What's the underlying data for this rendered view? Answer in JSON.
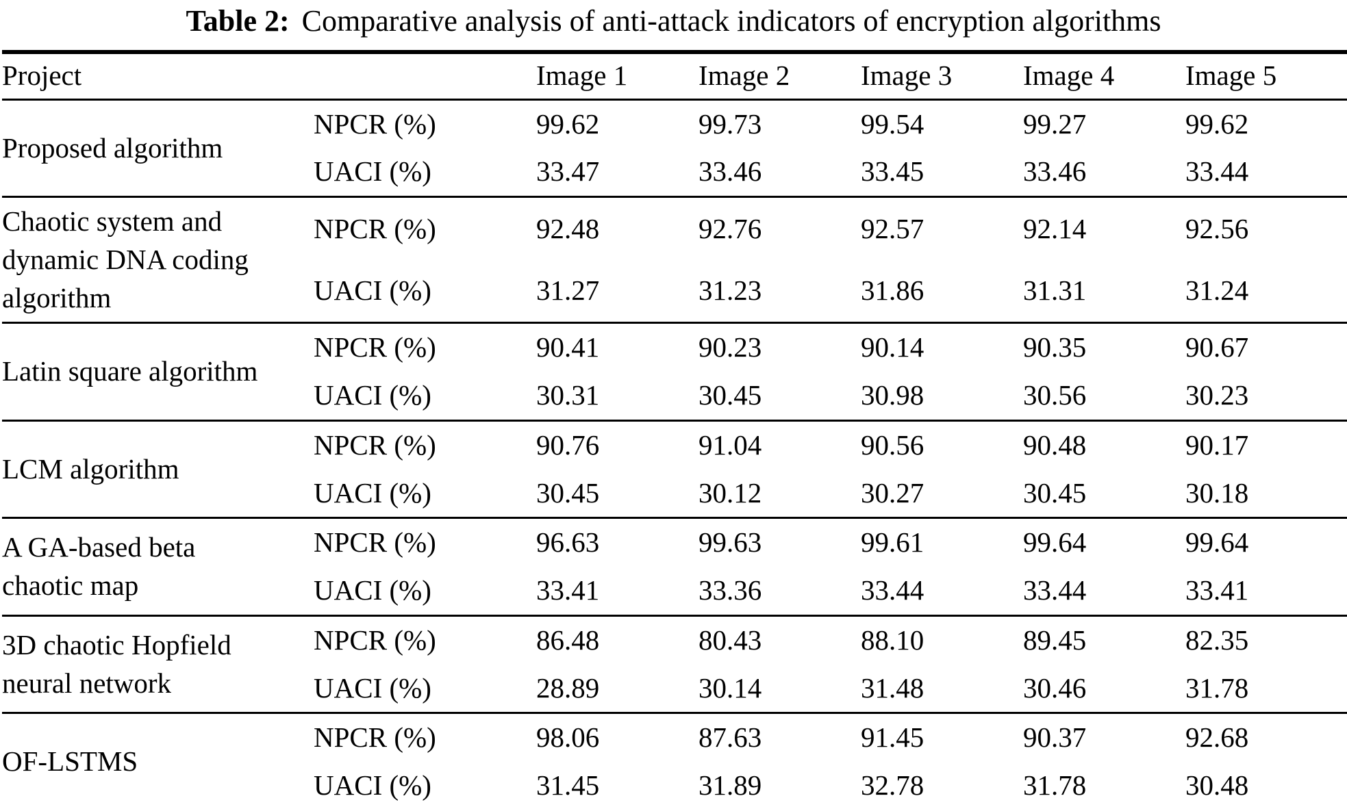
{
  "caption": {
    "label": "Table 2:",
    "text": "Comparative analysis of anti-attack indicators of encryption algorithms"
  },
  "table": {
    "headers": {
      "project": "Project",
      "metric": "",
      "images": [
        "Image 1",
        "Image 2",
        "Image 3",
        "Image 4",
        "Image 5"
      ]
    },
    "groups": [
      {
        "project": "Proposed algorithm",
        "rows": [
          {
            "metric": "NPCR (%)",
            "values": [
              "99.62",
              "99.73",
              "99.54",
              "99.27",
              "99.62"
            ]
          },
          {
            "metric": "UACI (%)",
            "values": [
              "33.47",
              "33.46",
              "33.45",
              "33.46",
              "33.44"
            ]
          }
        ]
      },
      {
        "project": "Chaotic system and dynamic DNA coding algorithm",
        "rows": [
          {
            "metric": "NPCR (%)",
            "values": [
              "92.48",
              "92.76",
              "92.57",
              "92.14",
              "92.56"
            ]
          },
          {
            "metric": "UACI (%)",
            "values": [
              "31.27",
              "31.23",
              "31.86",
              "31.31",
              "31.24"
            ]
          }
        ]
      },
      {
        "project": "Latin square algorithm",
        "rows": [
          {
            "metric": "NPCR (%)",
            "values": [
              "90.41",
              "90.23",
              "90.14",
              "90.35",
              "90.67"
            ]
          },
          {
            "metric": "UACI (%)",
            "values": [
              "30.31",
              "30.45",
              "30.98",
              "30.56",
              "30.23"
            ]
          }
        ]
      },
      {
        "project": "LCM algorithm",
        "rows": [
          {
            "metric": "NPCR (%)",
            "values": [
              "90.76",
              "91.04",
              "90.56",
              "90.48",
              "90.17"
            ]
          },
          {
            "metric": "UACI (%)",
            "values": [
              "30.45",
              "30.12",
              "30.27",
              "30.45",
              "30.18"
            ]
          }
        ]
      },
      {
        "project": "A GA-based beta chaotic map",
        "rows": [
          {
            "metric": "NPCR (%)",
            "values": [
              "96.63",
              "99.63",
              "99.61",
              "99.64",
              "99.64"
            ]
          },
          {
            "metric": "UACI (%)",
            "values": [
              "33.41",
              "33.36",
              "33.44",
              "33.44",
              "33.41"
            ]
          }
        ]
      },
      {
        "project": "3D chaotic Hopfield neural network",
        "rows": [
          {
            "metric": "NPCR (%)",
            "values": [
              "86.48",
              "80.43",
              "88.10",
              "89.45",
              "82.35"
            ]
          },
          {
            "metric": "UACI (%)",
            "values": [
              "28.89",
              "30.14",
              "31.48",
              "30.46",
              "31.78"
            ]
          }
        ]
      },
      {
        "project": "OF-LSTMS",
        "rows": [
          {
            "metric": "NPCR (%)",
            "values": [
              "98.06",
              "87.63",
              "91.45",
              "90.37",
              "92.68"
            ]
          },
          {
            "metric": "UACI (%)",
            "values": [
              "31.45",
              "31.89",
              "32.78",
              "31.78",
              "30.48"
            ]
          }
        ]
      }
    ]
  }
}
